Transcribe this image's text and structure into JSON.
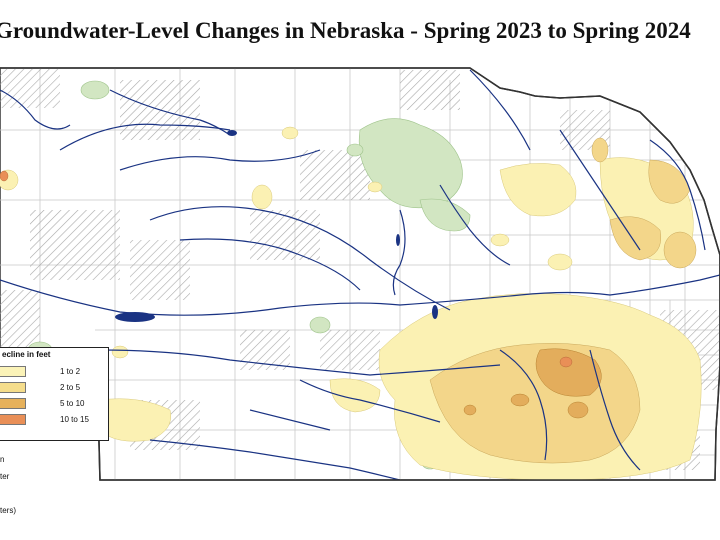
{
  "title": "Groundwater-Level Changes in Nebraska - Spring 2023 to Spring 2024",
  "legend": {
    "title": "ecline in feet",
    "items": [
      {
        "label": "1 to 2",
        "color": "#fbf3b8"
      },
      {
        "label": "2 to 5",
        "color": "#f5dd8c"
      },
      {
        "label": "5 to 10",
        "color": "#e6b15b"
      },
      {
        "label": "10 to 15",
        "color": "#e98f57"
      }
    ]
  },
  "sub_legend": {
    "line1": "n",
    "line2": "ter",
    "line3": "ters)"
  },
  "colors": {
    "rise_green": "#cfe4bf",
    "hatch_gray": "#9a9a9a",
    "river_blue": "#16307a",
    "county_line": "#c8c8c8",
    "state_outline": "#333333"
  }
}
